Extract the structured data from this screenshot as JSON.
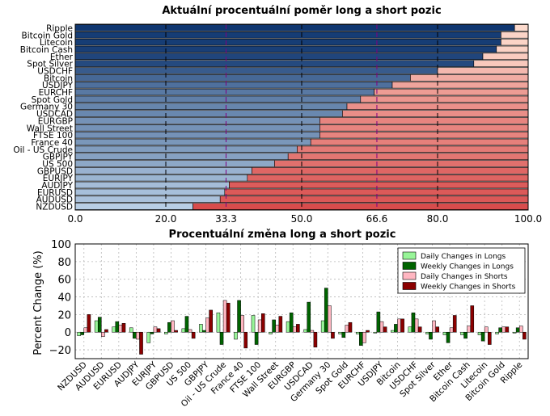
{
  "chart_data": [
    {
      "type": "bar",
      "orientation": "horizontal",
      "stacked": true,
      "title": "Aktuální procentuální poměr long a short pozic",
      "categories": [
        "Ripple",
        "Bitcoin Gold",
        "Litecoin",
        "Bitcoin Cash",
        "Ether",
        "Spot Silver",
        "USDCHF",
        "Bitcoin",
        "USDJPY",
        "EURCHF",
        "Spot Gold",
        "Germany 30",
        "USDCAD",
        "EURGBP",
        "Wall Street",
        "FTSE 100",
        "France 40",
        "Oil - US Crude",
        "GBPJPY",
        "US 500",
        "GBPUSD",
        "EURJPY",
        "AUDJPY",
        "EURUSD",
        "AUDUSD",
        "NZDUSD"
      ],
      "series": [
        {
          "values": [
            97,
            94,
            94,
            93,
            90,
            88,
            80,
            74,
            70,
            66,
            63,
            60,
            59,
            54,
            54,
            54,
            52,
            49,
            47,
            44,
            39,
            38,
            34,
            33,
            32,
            26
          ]
        },
        {
          "values": [
            3,
            6,
            6,
            7,
            10,
            12,
            20,
            26,
            30,
            34,
            37,
            40,
            41,
            46,
            46,
            46,
            48,
            51,
            53,
            56,
            61,
            62,
            66,
            67,
            68,
            74
          ]
        }
      ],
      "xlim": [
        0,
        100
      ],
      "xticks": [
        "0.0",
        "20.0",
        "33.3",
        "50.0",
        "66.6",
        "80.0",
        "100.0"
      ],
      "reference_lines": [
        33.3,
        50.0,
        66.6
      ],
      "grid": true
    },
    {
      "type": "bar",
      "title": "Procentuální změna long a short pozic",
      "ylabel": "Percent Change (%)",
      "ylim": [
        -30,
        100
      ],
      "yticks": [
        "−20",
        "0",
        "20",
        "40",
        "60",
        "80",
        "100"
      ],
      "legend_position": "top-right",
      "grid": true,
      "categories": [
        "NZDUSD",
        "AUDUSD",
        "EURUSD",
        "AUDJPY",
        "EURJPY",
        "GBPUSD",
        "US 500",
        "GBPJPY",
        "Oil - US Crude",
        "France 40",
        "FTSE 100",
        "Wall Street",
        "EURGBP",
        "USDCAD",
        "Germany 30",
        "Spot Gold",
        "EURCHF",
        "USDJPY",
        "Bitcoin",
        "USDCHF",
        "Spot Silver",
        "Ether",
        "Bitcoin Cash",
        "Litecoin",
        "Bitcoin Gold",
        "Ripple"
      ],
      "series": [
        {
          "name": "Daily Changes in Longs",
          "values": [
            -4,
            13,
            6,
            5,
            -12,
            -2,
            4,
            9,
            22,
            -8,
            19,
            -2,
            12,
            3,
            13,
            -2,
            -2,
            -1,
            2,
            6,
            -2,
            -3,
            -3,
            -3,
            -2,
            -1
          ]
        },
        {
          "name": "Weekly Changes in Longs",
          "values": [
            -3,
            17,
            12,
            -7,
            -2,
            11,
            18,
            2,
            -14,
            36,
            -14,
            14,
            22,
            34,
            50,
            -6,
            -15,
            23,
            9,
            22,
            -8,
            -12,
            -7,
            -10,
            5,
            5
          ]
        },
        {
          "name": "Daily Changes in Shorts",
          "values": [
            5,
            -5,
            8,
            -8,
            6,
            13,
            3,
            16,
            36,
            19,
            14,
            8,
            6,
            2,
            30,
            8,
            -12,
            12,
            15,
            15,
            13,
            5,
            7,
            6,
            6,
            7
          ]
        },
        {
          "name": "Weekly Changes in Shorts",
          "values": [
            20,
            3,
            10,
            -25,
            4,
            2,
            -7,
            25,
            33,
            -18,
            21,
            18,
            9,
            -17,
            -7,
            11,
            2,
            6,
            15,
            6,
            6,
            19,
            30,
            -14,
            6,
            -8
          ]
        }
      ]
    }
  ],
  "colors": {
    "legend_daily_longs": "#98f598",
    "legend_weekly_longs": "#006400",
    "legend_daily_shorts": "#ffb6c1",
    "legend_weekly_shorts": "#8b0000",
    "reference_line": "#800080"
  }
}
